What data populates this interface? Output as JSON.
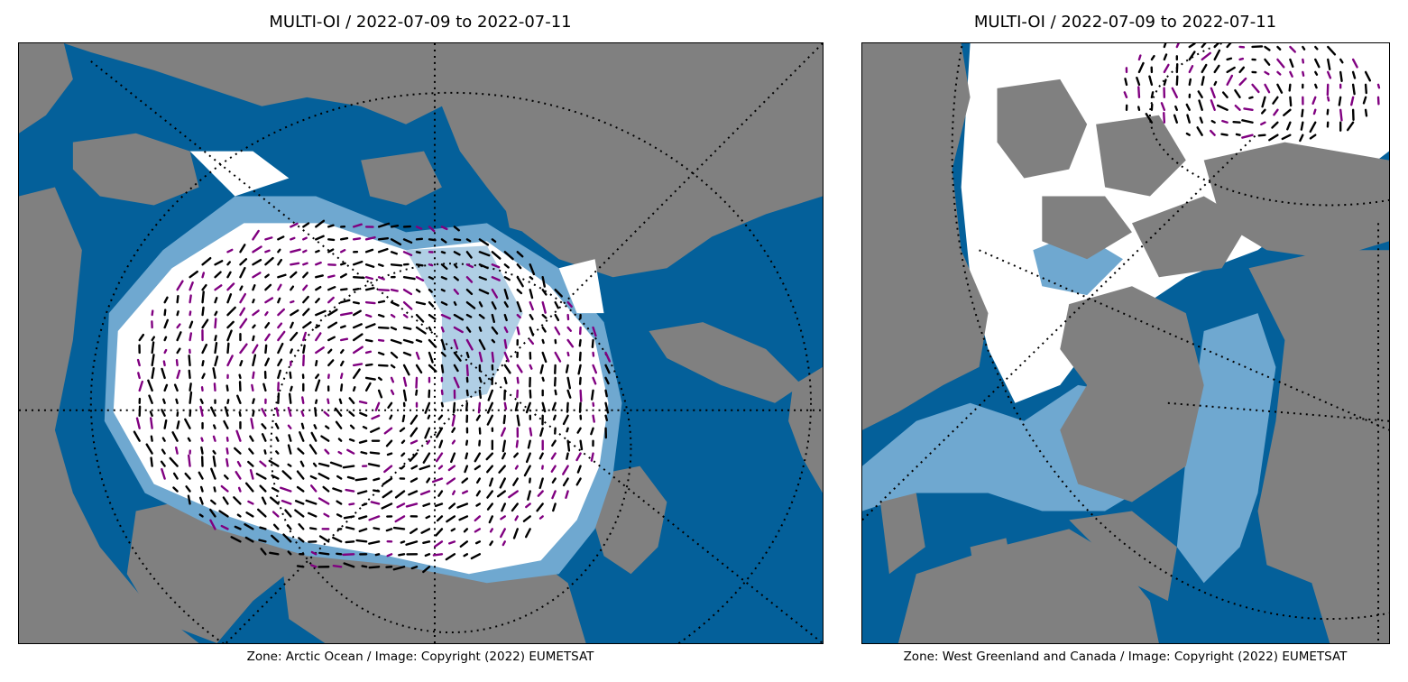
{
  "colors": {
    "land": "#808080",
    "open_water": "#04609a",
    "low_ice": "#6fa8d0",
    "ice": "#ffffff",
    "drift_vector_primary": "#000000",
    "drift_vector_secondary": "#800080",
    "graticule": "#000000"
  },
  "panels": [
    {
      "title": "MULTI-OI / 2022-07-09 to 2022-07-11",
      "caption": "Zone: Arctic Ocean / Image: Copyright (2022) EUMETSAT"
    },
    {
      "title": "MULTI-OI / 2022-07-09 to 2022-07-11",
      "caption": "Zone: West Greenland and Canada / Image: Copyright (2022) EUMETSAT"
    }
  ]
}
